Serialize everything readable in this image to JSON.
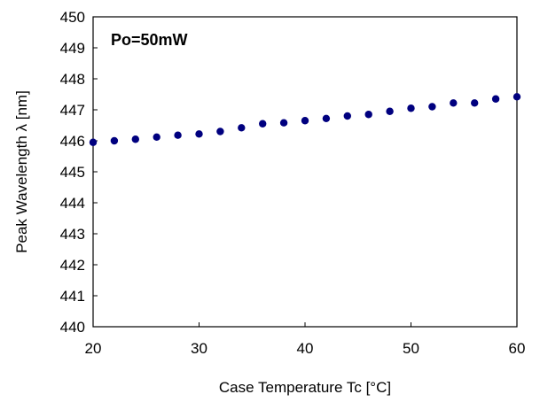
{
  "chart_data": {
    "type": "scatter",
    "title": "",
    "xlabel": "Case Temperature Tc [°C]",
    "ylabel": "Peak Wavelength λ [nm]",
    "annotation": "Po=50mW",
    "xlim": [
      20,
      60
    ],
    "ylim": [
      440,
      450
    ],
    "xticks": [
      "20",
      "30",
      "40",
      "50",
      "60"
    ],
    "yticks": [
      "440",
      "441",
      "442",
      "443",
      "444",
      "445",
      "446",
      "447",
      "448",
      "449",
      "450"
    ],
    "grid": false,
    "legend": "none",
    "marker_color": "#00007f",
    "series": [
      {
        "x": [
          20,
          22,
          24,
          26,
          28,
          30,
          32,
          34,
          36,
          38,
          40,
          42,
          44,
          46,
          48,
          50,
          52,
          54,
          56,
          58,
          60
        ],
        "y": [
          445.95,
          446.0,
          446.05,
          446.12,
          446.18,
          446.22,
          446.3,
          446.42,
          446.55,
          446.58,
          446.65,
          446.72,
          446.8,
          446.85,
          446.95,
          447.05,
          447.1,
          447.22,
          447.22,
          447.35,
          447.42
        ]
      }
    ]
  }
}
